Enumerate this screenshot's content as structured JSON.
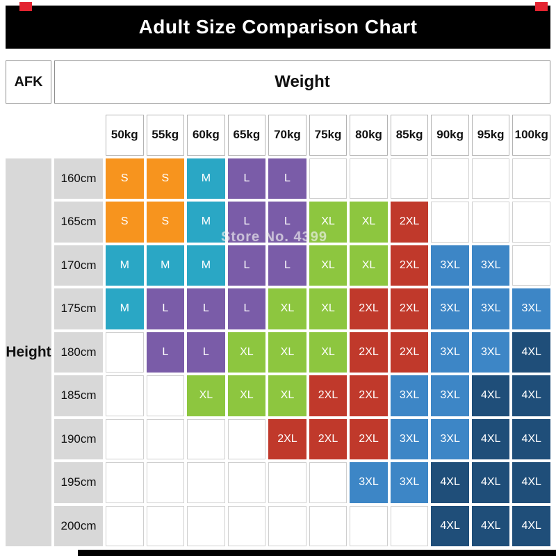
{
  "title": "Adult Size Comparison Chart",
  "header": {
    "corner": "AFK",
    "top": "Weight",
    "left": "Height"
  },
  "watermark": "Store No. 4399",
  "chart_data": {
    "type": "heatmap",
    "title": "Adult Size Comparison Chart",
    "x_label": "Weight",
    "y_label": "Height",
    "x_categories": [
      "50kg",
      "55kg",
      "60kg",
      "65kg",
      "70kg",
      "75kg",
      "80kg",
      "85kg",
      "90kg",
      "95kg",
      "100kg"
    ],
    "y_categories": [
      "160cm",
      "165cm",
      "170cm",
      "175cm",
      "180cm",
      "185cm",
      "190cm",
      "195cm",
      "200cm"
    ],
    "cell_values": [
      [
        "S",
        "S",
        "M",
        "L",
        "L",
        "",
        "",
        "",
        "",
        "",
        ""
      ],
      [
        "S",
        "S",
        "M",
        "L",
        "L",
        "XL",
        "XL",
        "2XL",
        "",
        "",
        ""
      ],
      [
        "M",
        "M",
        "M",
        "L",
        "L",
        "XL",
        "XL",
        "2XL",
        "3XL",
        "3XL",
        ""
      ],
      [
        "M",
        "L",
        "L",
        "L",
        "XL",
        "XL",
        "2XL",
        "2XL",
        "3XL",
        "3XL",
        "3XL"
      ],
      [
        "",
        "L",
        "L",
        "XL",
        "XL",
        "XL",
        "2XL",
        "2XL",
        "3XL",
        "3XL",
        "4XL"
      ],
      [
        "",
        "",
        "XL",
        "XL",
        "XL",
        "2XL",
        "2XL",
        "3XL",
        "3XL",
        "4XL",
        "4XL"
      ],
      [
        "",
        "",
        "",
        "",
        "2XL",
        "2XL",
        "2XL",
        "3XL",
        "3XL",
        "4XL",
        "4XL"
      ],
      [
        "",
        "",
        "",
        "",
        "",
        "",
        "3XL",
        "3XL",
        "4XL",
        "4XL",
        "4XL"
      ],
      [
        "",
        "",
        "",
        "",
        "",
        "",
        "",
        "",
        "4XL",
        "4XL",
        "4XL"
      ]
    ],
    "legend": {
      "S": "#f7941e",
      "M": "#2aa7c5",
      "L": "#7a5ca8",
      "XL": "#8dc63f",
      "2XL": "#c0392b",
      "3XL": "#3d86c6",
      "4XL": "#1f4e79"
    },
    "empty_cell_meaning": ""
  },
  "colors": {
    "title_bar_bg": "#000000",
    "title_text": "#ffffff",
    "label_cell_bg": "#d8d8d8",
    "corner_mark": "#e32330"
  }
}
